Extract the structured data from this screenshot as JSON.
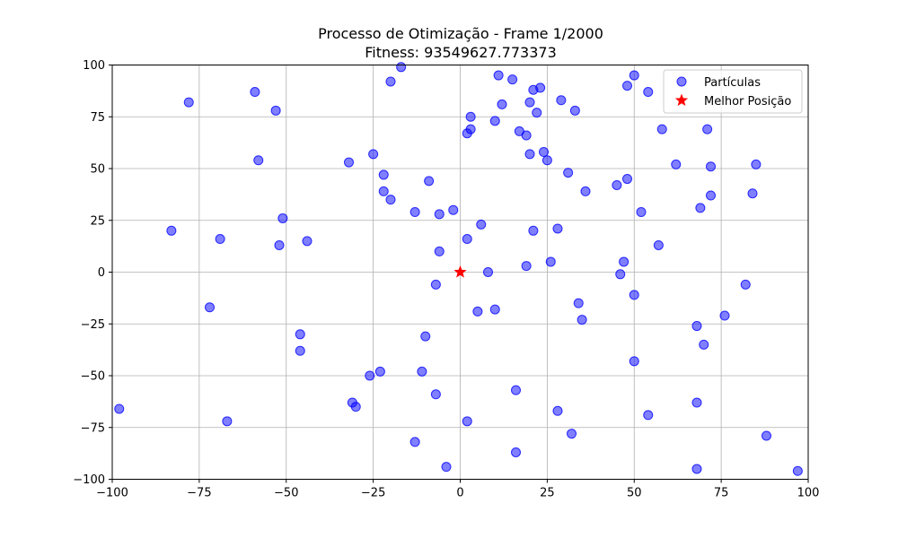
{
  "chart_data": {
    "type": "scatter",
    "title": "Processo de Otimização - Frame 1/2000",
    "subtitle": "Fitness: 93549627.773373",
    "xlim": [
      -100,
      100
    ],
    "ylim": [
      -100,
      100
    ],
    "x_ticks": [
      -100,
      -75,
      -50,
      -25,
      0,
      25,
      50,
      75,
      100
    ],
    "y_ticks": [
      -100,
      -75,
      -50,
      -25,
      0,
      25,
      50,
      75,
      100
    ],
    "grid": true,
    "legend_placement": "top-right",
    "colors": {
      "particles": "#0000ff",
      "best": "#ff0000"
    },
    "series": [
      {
        "name": "Partículas",
        "marker": "circle",
        "points": [
          [
            -98,
            -66
          ],
          [
            -83,
            20
          ],
          [
            -78,
            82
          ],
          [
            -72,
            -17
          ],
          [
            -69,
            16
          ],
          [
            -67,
            -72
          ],
          [
            -59,
            87
          ],
          [
            -58,
            54
          ],
          [
            -53,
            78
          ],
          [
            -52,
            13
          ],
          [
            -51,
            26
          ],
          [
            -46,
            -30
          ],
          [
            -46,
            -38
          ],
          [
            -44,
            15
          ],
          [
            -32,
            53
          ],
          [
            -31,
            -63
          ],
          [
            -30,
            -65
          ],
          [
            -26,
            -50
          ],
          [
            -25,
            57
          ],
          [
            -23,
            -48
          ],
          [
            -22,
            47
          ],
          [
            -22,
            39
          ],
          [
            -20,
            92
          ],
          [
            -20,
            35
          ],
          [
            -17,
            99
          ],
          [
            -13,
            29
          ],
          [
            -13,
            -82
          ],
          [
            -11,
            -48
          ],
          [
            -10,
            -31
          ],
          [
            -9,
            44
          ],
          [
            -7,
            -59
          ],
          [
            -7,
            -6
          ],
          [
            -6,
            28
          ],
          [
            -6,
            10
          ],
          [
            -4,
            -94
          ],
          [
            -2,
            30
          ],
          [
            2,
            16
          ],
          [
            2,
            67
          ],
          [
            2,
            -72
          ],
          [
            3,
            75
          ],
          [
            3,
            69
          ],
          [
            5,
            -19
          ],
          [
            6,
            23
          ],
          [
            8,
            0
          ],
          [
            10,
            73
          ],
          [
            10,
            -18
          ],
          [
            11,
            95
          ],
          [
            12,
            81
          ],
          [
            15,
            93
          ],
          [
            16,
            -57
          ],
          [
            16,
            -87
          ],
          [
            17,
            68
          ],
          [
            19,
            66
          ],
          [
            19,
            3
          ],
          [
            20,
            57
          ],
          [
            20,
            82
          ],
          [
            21,
            88
          ],
          [
            21,
            20
          ],
          [
            22,
            77
          ],
          [
            23,
            89
          ],
          [
            24,
            58
          ],
          [
            25,
            54
          ],
          [
            26,
            5
          ],
          [
            28,
            21
          ],
          [
            28,
            -67
          ],
          [
            29,
            83
          ],
          [
            31,
            48
          ],
          [
            32,
            -78
          ],
          [
            33,
            78
          ],
          [
            34,
            -15
          ],
          [
            35,
            -23
          ],
          [
            36,
            39
          ],
          [
            45,
            42
          ],
          [
            46,
            -1
          ],
          [
            47,
            5
          ],
          [
            48,
            90
          ],
          [
            48,
            45
          ],
          [
            50,
            95
          ],
          [
            50,
            -11
          ],
          [
            50,
            -43
          ],
          [
            52,
            29
          ],
          [
            54,
            87
          ],
          [
            54,
            -69
          ],
          [
            57,
            13
          ],
          [
            58,
            69
          ],
          [
            62,
            52
          ],
          [
            68,
            -26
          ],
          [
            68,
            -63
          ],
          [
            68,
            -95
          ],
          [
            69,
            31
          ],
          [
            70,
            -35
          ],
          [
            71,
            69
          ],
          [
            72,
            51
          ],
          [
            72,
            37
          ],
          [
            76,
            -21
          ],
          [
            82,
            -6
          ],
          [
            84,
            38
          ],
          [
            85,
            52
          ],
          [
            88,
            -79
          ],
          [
            97,
            -96
          ]
        ]
      },
      {
        "name": "Melhor Posição",
        "marker": "star",
        "points": [
          [
            0,
            0
          ]
        ]
      }
    ]
  }
}
